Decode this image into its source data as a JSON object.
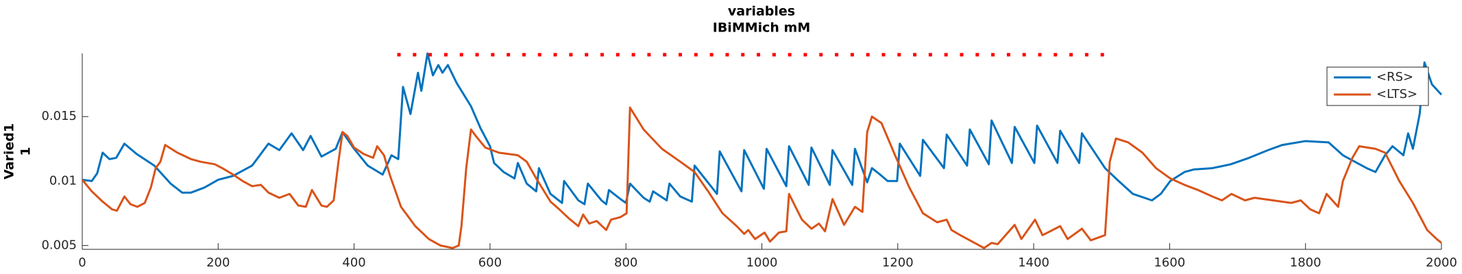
{
  "chart_data": {
    "type": "line",
    "title": [
      "variables",
      "IBiMMich mM"
    ],
    "ylabel": [
      "Varied1",
      "1"
    ],
    "xlim": [
      0,
      2000
    ],
    "xticks": [
      0,
      200,
      400,
      600,
      800,
      1000,
      1200,
      1400,
      1600,
      1800,
      2000
    ],
    "ylim": [
      0.0047,
      0.0199
    ],
    "yticks": [
      0.005,
      0.01,
      0.015
    ],
    "legend": "upper right",
    "series": [
      {
        "name": "<RS>",
        "color": "#0072bd",
        "x": [
          0,
          14,
          22,
          30,
          40,
          50,
          62,
          80,
          106,
          130,
          147,
          160,
          180,
          200,
          222,
          250,
          274,
          290,
          308,
          325,
          336,
          352,
          373,
          383,
          400,
          420,
          442,
          455,
          465,
          472,
          483,
          494,
          499,
          508,
          516,
          524,
          530,
          538,
          551,
          572,
          586,
          600,
          606,
          620,
          636,
          641,
          654,
          668,
          672,
          689,
          706,
          709,
          730,
          739,
          744,
          764,
          771,
          775,
          792,
          800,
          806,
          826,
          835,
          840,
          860,
          864,
          880,
          897,
          901,
          934,
          938,
          970,
          974,
          1003,
          1007,
          1036,
          1040,
          1069,
          1073,
          1100,
          1104,
          1133,
          1137,
          1155,
          1162,
          1174,
          1185,
          1199,
          1203,
          1233,
          1237,
          1268,
          1272,
          1302,
          1306,
          1334,
          1338,
          1368,
          1372,
          1401,
          1405,
          1435,
          1439,
          1467,
          1471,
          1500,
          1505,
          1525,
          1546,
          1574,
          1587,
          1601,
          1622,
          1636,
          1663,
          1690,
          1717,
          1745,
          1766,
          1800,
          1834,
          1855,
          1890,
          1903,
          1917,
          1928,
          1944,
          1951,
          1958,
          1968,
          1975,
          1986,
          2000
        ],
        "values": [
          0.0101,
          0.01,
          0.0106,
          0.0122,
          0.0117,
          0.0118,
          0.0129,
          0.0121,
          0.0112,
          0.0098,
          0.0091,
          0.0091,
          0.0095,
          0.0101,
          0.0104,
          0.0112,
          0.0129,
          0.0124,
          0.0137,
          0.0124,
          0.0135,
          0.0119,
          0.0125,
          0.0138,
          0.0125,
          0.0112,
          0.0105,
          0.012,
          0.0117,
          0.0173,
          0.0152,
          0.0184,
          0.017,
          0.0199,
          0.0182,
          0.019,
          0.0184,
          0.019,
          0.0176,
          0.0158,
          0.0141,
          0.0127,
          0.0114,
          0.0107,
          0.0102,
          0.0114,
          0.0098,
          0.0092,
          0.011,
          0.009,
          0.0083,
          0.01,
          0.0085,
          0.0082,
          0.0098,
          0.0085,
          0.0082,
          0.0093,
          0.0086,
          0.0083,
          0.0098,
          0.0087,
          0.0084,
          0.0092,
          0.0085,
          0.0098,
          0.0088,
          0.0084,
          0.0112,
          0.009,
          0.0123,
          0.0092,
          0.0124,
          0.0094,
          0.0125,
          0.0096,
          0.0127,
          0.0097,
          0.0126,
          0.0097,
          0.0124,
          0.0097,
          0.0125,
          0.0099,
          0.011,
          0.0105,
          0.01,
          0.01,
          0.0129,
          0.0104,
          0.0132,
          0.011,
          0.0136,
          0.0112,
          0.014,
          0.0113,
          0.0147,
          0.0114,
          0.0142,
          0.0114,
          0.0143,
          0.0114,
          0.0139,
          0.0114,
          0.0137,
          0.0114,
          0.011,
          0.01,
          0.009,
          0.0085,
          0.009,
          0.01,
          0.0107,
          0.0109,
          0.011,
          0.0113,
          0.0118,
          0.0124,
          0.0128,
          0.0131,
          0.013,
          0.012,
          0.011,
          0.0107,
          0.012,
          0.0127,
          0.012,
          0.0137,
          0.0125,
          0.0152,
          0.0192,
          0.0175,
          0.0167
        ]
      },
      {
        "name": "<LTS>",
        "color": "#d95319",
        "x": [
          0,
          14,
          30,
          44,
          51,
          62,
          71,
          81,
          92,
          101,
          108,
          115,
          122,
          140,
          160,
          174,
          195,
          206,
          222,
          236,
          250,
          263,
          274,
          290,
          305,
          318,
          329,
          338,
          352,
          360,
          370,
          377,
          383,
          390,
          400,
          414,
          428,
          434,
          444,
          453,
          469,
          490,
          510,
          527,
          545,
          554,
          558,
          565,
          572,
          579,
          593,
          613,
          641,
          654,
          668,
          689,
          702,
          716,
          730,
          737,
          746,
          757,
          771,
          778,
          792,
          801,
          806,
          826,
          853,
          880,
          901,
          921,
          942,
          963,
          974,
          980,
          990,
          1004,
          1012,
          1025,
          1036,
          1040,
          1059,
          1073,
          1084,
          1093,
          1104,
          1121,
          1137,
          1148,
          1155,
          1162,
          1176,
          1196,
          1217,
          1237,
          1258,
          1272,
          1279,
          1292,
          1313,
          1327,
          1338,
          1347,
          1372,
          1382,
          1402,
          1413,
          1439,
          1450,
          1471,
          1484,
          1505,
          1512,
          1521,
          1539,
          1560,
          1580,
          1601,
          1622,
          1642,
          1663,
          1677,
          1691,
          1711,
          1725,
          1752,
          1779,
          1793,
          1807,
          1820,
          1831,
          1848,
          1855,
          1869,
          1879,
          1903,
          1917,
          1938,
          1958,
          1979,
          1993,
          2000
        ],
        "values": [
          0.0101,
          0.0092,
          0.0084,
          0.0078,
          0.0077,
          0.0088,
          0.0082,
          0.008,
          0.0083,
          0.0095,
          0.011,
          0.0115,
          0.0128,
          0.0122,
          0.0117,
          0.0115,
          0.0113,
          0.011,
          0.0105,
          0.01,
          0.0096,
          0.0097,
          0.0091,
          0.0087,
          0.009,
          0.0081,
          0.008,
          0.0093,
          0.0081,
          0.008,
          0.0085,
          0.0115,
          0.0138,
          0.0135,
          0.0126,
          0.0121,
          0.0118,
          0.0127,
          0.012,
          0.0104,
          0.008,
          0.0065,
          0.0055,
          0.005,
          0.0048,
          0.005,
          0.0065,
          0.011,
          0.014,
          0.0135,
          0.0126,
          0.0122,
          0.012,
          0.0115,
          0.0102,
          0.0084,
          0.0078,
          0.0071,
          0.0065,
          0.0074,
          0.0067,
          0.0069,
          0.0062,
          0.007,
          0.0072,
          0.0075,
          0.0157,
          0.014,
          0.0125,
          0.0115,
          0.0107,
          0.0092,
          0.0075,
          0.0065,
          0.0059,
          0.0062,
          0.0055,
          0.006,
          0.0053,
          0.006,
          0.0061,
          0.009,
          0.007,
          0.0063,
          0.0067,
          0.0061,
          0.0086,
          0.0066,
          0.008,
          0.0076,
          0.0138,
          0.015,
          0.0145,
          0.012,
          0.0095,
          0.0075,
          0.0068,
          0.007,
          0.0062,
          0.0058,
          0.0052,
          0.0048,
          0.0052,
          0.0051,
          0.0066,
          0.0055,
          0.007,
          0.0058,
          0.0065,
          0.0055,
          0.0063,
          0.0054,
          0.0058,
          0.0115,
          0.0133,
          0.013,
          0.0122,
          0.011,
          0.0102,
          0.0097,
          0.0093,
          0.0088,
          0.0085,
          0.009,
          0.0085,
          0.0087,
          0.0085,
          0.0083,
          0.0085,
          0.0078,
          0.0075,
          0.009,
          0.008,
          0.01,
          0.0118,
          0.0127,
          0.0125,
          0.0122,
          0.01,
          0.0083,
          0.0062,
          0.0055,
          0.0052
        ]
      }
    ],
    "markers": {
      "color": "#ff0000",
      "x": [
        466,
        489,
        512,
        535,
        558,
        581,
        604,
        627,
        650,
        673,
        696,
        719,
        742,
        765,
        788,
        811,
        834,
        857,
        880,
        903,
        926,
        949,
        972,
        995,
        1018,
        1041,
        1064,
        1087,
        1110,
        1133,
        1156,
        1179,
        1202,
        1225,
        1248,
        1271,
        1294,
        1317,
        1340,
        1363,
        1386,
        1409,
        1432,
        1455,
        1478,
        1501
      ],
      "values": [
        0.0198,
        0.0198,
        0.0198,
        0.0198,
        0.0198,
        0.0198,
        0.0198,
        0.0198,
        0.0198,
        0.0198,
        0.0198,
        0.0198,
        0.0198,
        0.0198,
        0.0198,
        0.0198,
        0.0198,
        0.0198,
        0.0198,
        0.0198,
        0.0198,
        0.0198,
        0.0198,
        0.0198,
        0.0198,
        0.0198,
        0.0198,
        0.0198,
        0.0198,
        0.0198,
        0.0198,
        0.0198,
        0.0198,
        0.0198,
        0.0198,
        0.0198,
        0.0198,
        0.0198,
        0.0198,
        0.0198,
        0.0198,
        0.0198,
        0.0198,
        0.0198,
        0.0198,
        0.0198
      ]
    }
  }
}
